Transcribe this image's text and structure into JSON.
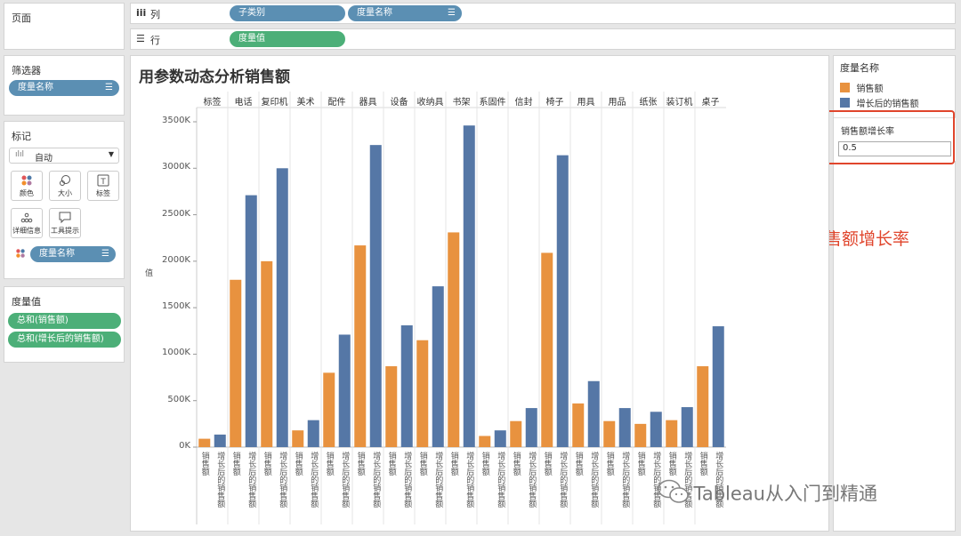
{
  "pages": {
    "title": "页面"
  },
  "columns_shelf": {
    "icon": "iii",
    "label": "列",
    "pills": [
      {
        "label": "子类别"
      },
      {
        "label": "度量名称"
      }
    ]
  },
  "rows_shelf": {
    "icon": "☰",
    "label": "行",
    "pills": [
      {
        "label": "度量值"
      }
    ]
  },
  "filters": {
    "title": "筛选器",
    "pills": [
      {
        "label": "度量名称"
      }
    ]
  },
  "marks": {
    "title": "标记",
    "type_selected": "自动",
    "buttons": {
      "color": "颜色",
      "size": "大小",
      "label": "标签",
      "detail": "详细信息",
      "tooltip": "工具提示"
    },
    "color_pill": "度量名称"
  },
  "measure_values": {
    "title": "度量值",
    "pills": [
      {
        "label": "总和(销售额)"
      },
      {
        "label": "总和(增长后的销售额)"
      }
    ]
  },
  "legend": {
    "title": "度量名称",
    "items": [
      {
        "label": "销售额",
        "color": "#e8923f"
      },
      {
        "label": "增长后的销售额",
        "color": "#5577a6"
      }
    ]
  },
  "parameter": {
    "title": "销售额增长率",
    "value": "0.5"
  },
  "annotation": {
    "text": "任意设置销售额增长率",
    "color": "#e0452c"
  },
  "watermark": {
    "text": "Tableau从入门到精通"
  },
  "chart_data": {
    "type": "bar",
    "title": "用参数动态分析销售额",
    "ylabel": "值",
    "ylim": [
      0,
      3500000
    ],
    "yticks": [
      {
        "value": 0,
        "label": "0K"
      },
      {
        "value": 500000,
        "label": "500K"
      },
      {
        "value": 1000000,
        "label": "1000K"
      },
      {
        "value": 1500000,
        "label": "1500K"
      },
      {
        "value": 2000000,
        "label": "2000K"
      },
      {
        "value": 2500000,
        "label": "2500K"
      },
      {
        "value": 3000000,
        "label": "3000K"
      },
      {
        "value": 3500000,
        "label": "3500K"
      }
    ],
    "categories": [
      "标签",
      "电话",
      "复印机",
      "美术",
      "配件",
      "器具",
      "设备",
      "收纳具",
      "书架",
      "系固件",
      "信封",
      "椅子",
      "用具",
      "用品",
      "纸张",
      "装订机",
      "桌子"
    ],
    "series": [
      {
        "name": "销售额",
        "color": "#e8923f",
        "values": [
          90000,
          1800000,
          2000000,
          180000,
          800000,
          2170000,
          870000,
          1150000,
          2310000,
          120000,
          280000,
          2090000,
          470000,
          280000,
          250000,
          290000,
          870000
        ]
      },
      {
        "name": "增长后的销售额",
        "color": "#5577a6",
        "values": [
          135000,
          2710000,
          3000000,
          290000,
          1210000,
          3250000,
          1310000,
          1730000,
          3460000,
          180000,
          420000,
          3140000,
          710000,
          420000,
          380000,
          430000,
          1300000
        ]
      }
    ],
    "grid": false,
    "legend_position": "right"
  }
}
